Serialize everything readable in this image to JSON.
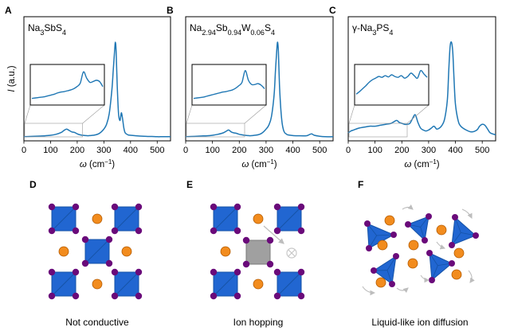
{
  "panel_letters": [
    "A",
    "B",
    "C",
    "D",
    "E",
    "F"
  ],
  "ylabel_prefix": "I",
  "ylabel_suffix": " (a.u.)",
  "xlabel_prefix": "ω",
  "xlabel_suffix": " (cm",
  "xlabel_exp": "−1",
  "xlabel_close": ")",
  "inset_region": [
    0,
    220
  ],
  "line_color": "#1f77b4",
  "chart_data": [
    {
      "type": "line",
      "title_parts": [
        [
          "Na",
          ""
        ],
        [
          "3",
          "sub"
        ],
        [
          "SbS",
          ""
        ],
        [
          "4",
          "sub"
        ]
      ],
      "xlim": [
        0,
        550
      ],
      "xticks": [
        0,
        100,
        200,
        300,
        400,
        500
      ],
      "ylim": [
        0,
        1
      ],
      "x": [
        0,
        20,
        40,
        60,
        80,
        100,
        120,
        140,
        150,
        160,
        170,
        180,
        190,
        200,
        210,
        220,
        230,
        240,
        250,
        260,
        270,
        280,
        290,
        300,
        310,
        320,
        330,
        335,
        340,
        343,
        346,
        350,
        355,
        360,
        363,
        366,
        370,
        375,
        380,
        390,
        400,
        420,
        450,
        480,
        500,
        520,
        550
      ],
      "y": [
        0.01,
        0.012,
        0.015,
        0.017,
        0.02,
        0.025,
        0.035,
        0.055,
        0.075,
        0.09,
        0.075,
        0.06,
        0.055,
        0.04,
        0.03,
        0.025,
        0.022,
        0.02,
        0.022,
        0.025,
        0.03,
        0.04,
        0.06,
        0.09,
        0.14,
        0.25,
        0.5,
        0.7,
        0.9,
        1.0,
        0.9,
        0.55,
        0.25,
        0.18,
        0.22,
        0.26,
        0.2,
        0.1,
        0.05,
        0.03,
        0.025,
        0.02,
        0.015,
        0.012,
        0.01,
        0.01,
        0.01
      ],
      "inset_y": [
        0.12,
        0.13,
        0.14,
        0.15,
        0.16,
        0.18,
        0.2,
        0.22,
        0.25,
        0.27,
        0.28,
        0.3,
        0.32,
        0.35,
        0.4,
        0.48,
        0.75,
        0.6,
        0.5,
        0.52,
        0.55,
        0.52,
        0.4
      ],
      "inset_ymax": 0.85
    },
    {
      "type": "line",
      "title_parts": [
        [
          "Na",
          ""
        ],
        [
          "2.94",
          "sub"
        ],
        [
          "Sb",
          ""
        ],
        [
          "0.94",
          "sub"
        ],
        [
          "W",
          ""
        ],
        [
          "0.06",
          "sub"
        ],
        [
          "S",
          ""
        ],
        [
          "4",
          "sub"
        ]
      ],
      "xlim": [
        0,
        550
      ],
      "xticks": [
        0,
        100,
        200,
        300,
        400,
        500
      ],
      "ylim": [
        0,
        1
      ],
      "x": [
        0,
        20,
        40,
        60,
        80,
        100,
        120,
        140,
        150,
        160,
        170,
        180,
        190,
        200,
        210,
        220,
        230,
        240,
        250,
        260,
        270,
        280,
        290,
        300,
        310,
        320,
        330,
        335,
        340,
        343,
        346,
        350,
        355,
        360,
        365,
        370,
        375,
        380,
        400,
        420,
        450,
        460,
        470,
        480,
        500,
        520,
        550
      ],
      "y": [
        0.01,
        0.012,
        0.015,
        0.018,
        0.02,
        0.025,
        0.035,
        0.05,
        0.065,
        0.08,
        0.06,
        0.05,
        0.045,
        0.035,
        0.03,
        0.025,
        0.022,
        0.02,
        0.022,
        0.026,
        0.03,
        0.04,
        0.06,
        0.09,
        0.13,
        0.22,
        0.45,
        0.7,
        0.92,
        1.0,
        0.9,
        0.55,
        0.3,
        0.15,
        0.08,
        0.05,
        0.04,
        0.03,
        0.022,
        0.02,
        0.02,
        0.03,
        0.04,
        0.025,
        0.015,
        0.01,
        0.01
      ],
      "inset_y": [
        0.12,
        0.13,
        0.14,
        0.15,
        0.17,
        0.19,
        0.21,
        0.23,
        0.25,
        0.27,
        0.28,
        0.3,
        0.32,
        0.36,
        0.42,
        0.5,
        0.78,
        0.55,
        0.45,
        0.45,
        0.47,
        0.43,
        0.35
      ],
      "inset_ymax": 0.85
    },
    {
      "type": "line",
      "title_parts": [
        [
          "γ-Na",
          ""
        ],
        [
          "3",
          "sub"
        ],
        [
          "PS",
          ""
        ],
        [
          "4",
          "sub"
        ]
      ],
      "xlim": [
        0,
        550
      ],
      "xticks": [
        0,
        100,
        200,
        300,
        400,
        500
      ],
      "ylim": [
        0,
        1
      ],
      "x": [
        0,
        10,
        20,
        40,
        60,
        80,
        100,
        120,
        140,
        160,
        180,
        190,
        200,
        210,
        220,
        230,
        240,
        250,
        260,
        270,
        280,
        290,
        300,
        310,
        320,
        330,
        340,
        350,
        360,
        370,
        375,
        380,
        385,
        390,
        395,
        400,
        410,
        420,
        440,
        460,
        480,
        490,
        500,
        510,
        520,
        530,
        550
      ],
      "y": [
        0.05,
        0.07,
        0.08,
        0.1,
        0.11,
        0.12,
        0.12,
        0.13,
        0.14,
        0.15,
        0.18,
        0.16,
        0.15,
        0.14,
        0.14,
        0.15,
        0.2,
        0.24,
        0.16,
        0.1,
        0.08,
        0.07,
        0.08,
        0.1,
        0.12,
        0.09,
        0.1,
        0.13,
        0.2,
        0.4,
        0.7,
        0.95,
        1.0,
        0.9,
        0.6,
        0.35,
        0.18,
        0.12,
        0.08,
        0.06,
        0.08,
        0.12,
        0.14,
        0.13,
        0.09,
        0.05,
        0.03
      ],
      "inset_y": [
        0.22,
        0.28,
        0.35,
        0.42,
        0.5,
        0.56,
        0.6,
        0.64,
        0.62,
        0.66,
        0.63,
        0.68,
        0.64,
        0.62,
        0.66,
        0.6,
        0.64,
        0.72,
        0.66,
        0.6,
        0.78,
        0.7,
        0.62
      ],
      "inset_ymax": 0.85
    }
  ],
  "mechanisms": [
    {
      "letter": "D",
      "caption": "Not conductive"
    },
    {
      "letter": "E",
      "caption": "Ion hopping"
    },
    {
      "letter": "F",
      "caption": "Liquid-like ion diffusion"
    }
  ],
  "colors": {
    "tetrahedron": "#2166d1",
    "tetrahedron_edge": "#1552a6",
    "anion": "#6a0a7a",
    "sodium": "#f28c1e",
    "sodium_edge": "#b35a00",
    "transition_state": "#a0a0a0",
    "vacancy": "#c8c8c8",
    "arrow": "#bdbdbd"
  }
}
